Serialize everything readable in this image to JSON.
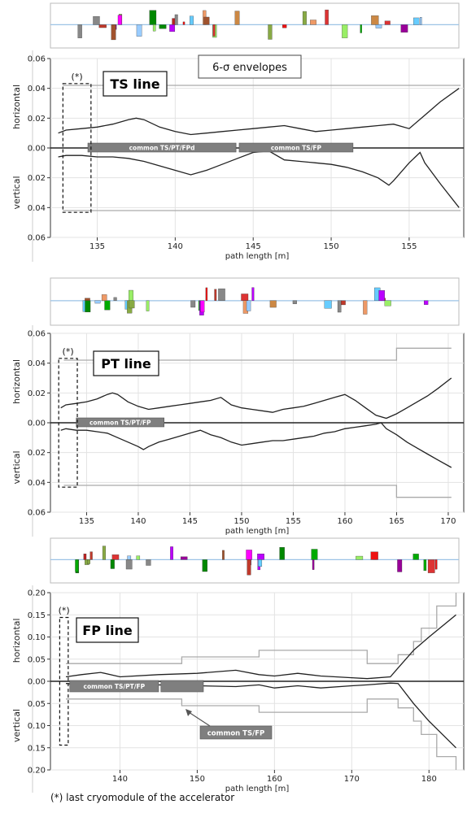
{
  "panels": [
    {
      "line_label": "TS line",
      "top_label": "6-σ envelopes",
      "cryo_marker": "(*)",
      "xlabel": "path length [m]",
      "ylabel_top": "horizontal",
      "ylabel_bottom": "vertical",
      "xlim": [
        132,
        158.5
      ],
      "ylim": [
        -0.06,
        0.06
      ],
      "xticks": [
        135,
        140,
        145,
        150,
        155
      ],
      "ytick_labels": [
        "0.06",
        "0.04",
        "0.02",
        "0.00",
        "0.02",
        "0.04",
        "0.06"
      ],
      "boxes": [
        {
          "label": "common TS/PT/FPd",
          "x": [
            134.4,
            143.9
          ]
        },
        {
          "label": "common TS/FP",
          "x": [
            144.1,
            151.4
          ]
        }
      ],
      "chart_data": {
        "type": "line",
        "series": [
          {
            "x": [
              132.5,
              133,
              134,
              135,
              136,
              137,
              137.5,
              138,
              139,
              140,
              141,
              142,
              143,
              144,
              145,
              146,
              147,
              148,
              149,
              150,
              151,
              152,
              153,
              154,
              155,
              156,
              157,
              158.2
            ],
            "y": [
              0.01,
              0.012,
              0.013,
              0.014,
              0.016,
              0.019,
              0.02,
              0.019,
              0.014,
              0.011,
              0.009,
              0.01,
              0.011,
              0.012,
              0.013,
              0.014,
              0.015,
              0.013,
              0.011,
              0.012,
              0.013,
              0.014,
              0.015,
              0.016,
              0.013,
              0.022,
              0.031,
              0.04
            ]
          },
          {
            "x": [
              132.5,
              133,
              134,
              135,
              136,
              137,
              138,
              139,
              140,
              141,
              142,
              143,
              144,
              145,
              146,
              147,
              148,
              149,
              150,
              151,
              152,
              153,
              153.7,
              154,
              155,
              155.7,
              156,
              157,
              158.2
            ],
            "y": [
              -0.006,
              -0.005,
              -0.005,
              -0.006,
              -0.006,
              -0.007,
              -0.009,
              -0.012,
              -0.015,
              -0.018,
              -0.015,
              -0.011,
              -0.007,
              -0.003,
              -0.002,
              -0.008,
              -0.009,
              -0.01,
              -0.011,
              -0.013,
              -0.016,
              -0.02,
              -0.025,
              -0.022,
              -0.01,
              -0.003,
              -0.01,
              -0.024,
              -0.04
            ]
          }
        ],
        "aperture": [
          {
            "x": [
              132.8,
              158.3
            ],
            "y": [
              0.042,
              0.042
            ]
          },
          {
            "x": [
              132.8,
              158.3
            ],
            "y": [
              -0.042,
              -0.042
            ]
          }
        ]
      }
    },
    {
      "line_label": "PT line",
      "cryo_marker": "(*)",
      "xlabel": "path length [m]",
      "ylabel_top": "horizontal",
      "ylabel_bottom": "vertical",
      "xlim": [
        131.5,
        171.5
      ],
      "ylim": [
        -0.06,
        0.06
      ],
      "xticks": [
        135,
        140,
        145,
        150,
        155,
        160,
        165,
        170
      ],
      "ytick_labels": [
        "0.06",
        "0.04",
        "0.02",
        "0.00",
        "0.02",
        "0.04",
        "0.06"
      ],
      "boxes": [
        {
          "label": "common TS/PT/FP",
          "x": [
            134,
            142.5
          ]
        }
      ],
      "chart_data": {
        "type": "line",
        "series": [
          {
            "x": [
              132.5,
              133,
              134,
              135,
              136,
              137,
              137.5,
              138,
              139,
              140,
              141,
              142,
              143,
              144,
              145,
              146,
              147,
              148,
              149,
              150,
              151,
              152,
              153,
              154,
              155,
              156,
              157,
              158,
              159,
              160,
              161,
              162,
              163,
              164,
              165,
              166,
              167,
              168,
              169,
              170.3
            ],
            "y": [
              0.01,
              0.012,
              0.013,
              0.014,
              0.016,
              0.019,
              0.02,
              0.019,
              0.014,
              0.011,
              0.009,
              0.01,
              0.011,
              0.012,
              0.013,
              0.014,
              0.015,
              0.017,
              0.012,
              0.01,
              0.009,
              0.008,
              0.007,
              0.009,
              0.01,
              0.011,
              0.013,
              0.015,
              0.017,
              0.019,
              0.015,
              0.01,
              0.005,
              0.003,
              0.006,
              0.01,
              0.014,
              0.018,
              0.023,
              0.03
            ]
          },
          {
            "x": [
              132.5,
              133,
              134,
              135,
              136,
              137,
              138,
              139,
              140,
              140.5,
              141,
              142,
              143,
              144,
              145,
              146,
              147,
              148,
              149,
              150,
              151,
              152,
              153,
              154,
              155,
              156,
              157,
              158,
              159,
              160,
              161,
              162,
              163,
              163.5,
              164,
              165,
              166,
              167,
              168,
              169,
              170.3
            ],
            "y": [
              -0.005,
              -0.004,
              -0.005,
              -0.005,
              -0.006,
              -0.007,
              -0.01,
              -0.013,
              -0.016,
              -0.018,
              -0.016,
              -0.013,
              -0.011,
              -0.009,
              -0.007,
              -0.005,
              -0.008,
              -0.01,
              -0.013,
              -0.015,
              -0.014,
              -0.013,
              -0.012,
              -0.012,
              -0.011,
              -0.01,
              -0.009,
              -0.007,
              -0.006,
              -0.004,
              -0.003,
              -0.002,
              -0.001,
              0.0,
              -0.004,
              -0.008,
              -0.013,
              -0.017,
              -0.021,
              -0.025,
              -0.03
            ]
          }
        ],
        "aperture": [
          {
            "x": [
              132.8,
              165,
              165,
              170.3
            ],
            "y": [
              0.042,
              0.042,
              0.05,
              0.05
            ]
          },
          {
            "x": [
              132.8,
              165,
              165,
              170.3
            ],
            "y": [
              -0.042,
              -0.042,
              -0.05,
              -0.05
            ]
          }
        ]
      }
    },
    {
      "line_label": "FP line",
      "cryo_marker": "(*)",
      "arrow_label": "common TS/FP",
      "xlabel": "path length [m]",
      "ylabel_top": "horizontal",
      "ylabel_bottom": "vertical",
      "xlim": [
        131,
        184.5
      ],
      "ylim": [
        -0.2,
        0.2
      ],
      "xticks": [
        140,
        150,
        160,
        170,
        180
      ],
      "ytick_labels": [
        "0.20",
        "0.15",
        "0.10",
        "0.05",
        "0.00",
        "0.05",
        "0.10",
        "0.15",
        "0.20"
      ],
      "boxes": [
        {
          "label": "common TS/PT/FP",
          "x": [
            133.5,
            145
          ]
        },
        {
          "label": "",
          "x": [
            145.3,
            150.8
          ]
        }
      ],
      "chart_data": {
        "type": "line",
        "series": [
          {
            "x": [
              133,
              135,
              137.5,
              140,
              145,
              150,
              155,
              158,
              160,
              163,
              166,
              170,
              172,
              175,
              176,
              178,
              180,
              183.5
            ],
            "y": [
              0.01,
              0.015,
              0.02,
              0.01,
              0.015,
              0.018,
              0.025,
              0.015,
              0.012,
              0.018,
              0.012,
              0.008,
              0.006,
              0.01,
              0.03,
              0.07,
              0.1,
              0.15
            ]
          },
          {
            "x": [
              133,
              135,
              137.5,
              140,
              145,
              150,
              155,
              158,
              160,
              163,
              166,
              170,
              172,
              175,
              176,
              178,
              180,
              183.5
            ],
            "y": [
              -0.005,
              -0.008,
              -0.01,
              -0.018,
              -0.008,
              -0.01,
              -0.012,
              -0.008,
              -0.015,
              -0.01,
              -0.015,
              -0.01,
              -0.008,
              -0.004,
              -0.005,
              -0.05,
              -0.09,
              -0.15
            ]
          }
        ],
        "aperture": [
          {
            "x": [
              133,
              148,
              148,
              158,
              158,
              172,
              172,
              176,
              176,
              178,
              178,
              179,
              179,
              181,
              181,
              183.5,
              183.5
            ],
            "y": [
              0.04,
              0.04,
              0.055,
              0.055,
              0.07,
              0.07,
              0.04,
              0.04,
              0.06,
              0.06,
              0.09,
              0.09,
              0.12,
              0.12,
              0.17,
              0.17,
              0.2
            ]
          },
          {
            "x": [
              133,
              148,
              148,
              158,
              158,
              172,
              172,
              176,
              176,
              178,
              178,
              179,
              179,
              181,
              181,
              183.5,
              183.5
            ],
            "y": [
              -0.04,
              -0.04,
              -0.055,
              -0.055,
              -0.07,
              -0.07,
              -0.04,
              -0.04,
              -0.06,
              -0.06,
              -0.09,
              -0.09,
              -0.12,
              -0.12,
              -0.17,
              -0.17,
              -0.2
            ]
          }
        ]
      }
    }
  ],
  "footnote": "(*) last cryomodule of the accelerator"
}
